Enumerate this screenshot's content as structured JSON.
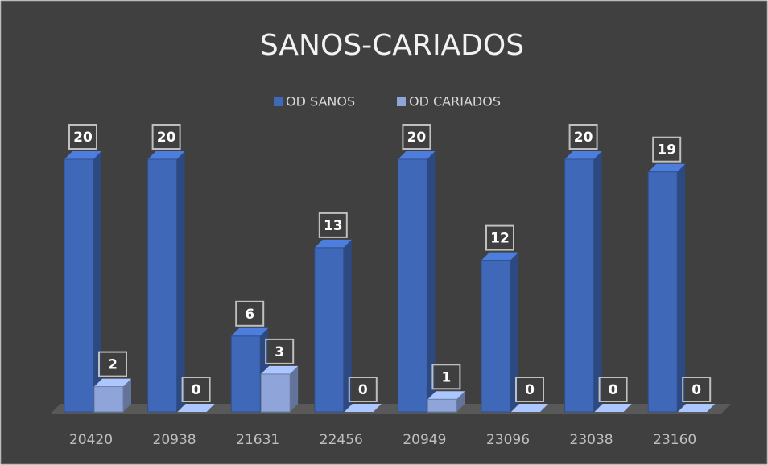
{
  "chart_data": {
    "type": "bar3d",
    "title": "SANOS-CARIADOS",
    "categories": [
      "20420",
      "20938",
      "21631",
      "22456",
      "20949",
      "23096",
      "23038",
      "23160"
    ],
    "series": [
      {
        "name": "OD SANOS",
        "color": "#4068b8",
        "values": [
          20,
          20,
          6,
          13,
          20,
          12,
          20,
          19
        ]
      },
      {
        "name": "OD CARIADOS",
        "color": "#8fa5da",
        "values": [
          2,
          0,
          3,
          0,
          1,
          0,
          0,
          0
        ]
      }
    ],
    "legend": "top"
  }
}
